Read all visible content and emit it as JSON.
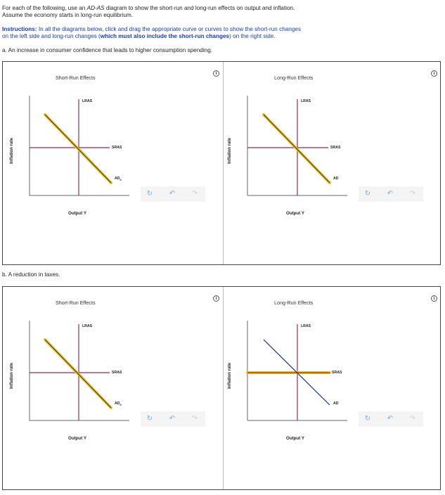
{
  "intro": {
    "line1_a": "For each of the following, use an ",
    "line1_em": "AD-AS",
    "line1_b": " diagram to show the short-run and long-run effects on output and inflation.",
    "line2": "Assume the economy starts in long-run equilibrium."
  },
  "instructions": {
    "label": "Instructions:",
    "line1": " In all the diagrams below, click and drag the appropriate curve or curves to show the short-run changes",
    "line2_a": "on the left side and long-run changes (",
    "line2_bold": "which must also include the short-run changes",
    "line2_b": ") on the right side."
  },
  "question_a": "a. An increase in consumer confidence that leads to higher consumption spending.",
  "question_b": "b. A reduction in taxes.",
  "panels": {
    "a": {
      "left": {
        "title": "Short-Run Effects",
        "ylabel": "Inflation rate",
        "xlabel": "Output Y",
        "lras": "LRAS",
        "sras": "SRAS",
        "ad": "AD",
        "ad_sub": "0"
      },
      "right": {
        "title": "Long-Run Effects",
        "ylabel": "Inflation rate",
        "xlabel": "Output Y",
        "lras": "LRAS",
        "sras": "SRAS",
        "ad": "AD",
        "ad_sub": ""
      }
    },
    "b": {
      "left": {
        "title": "Short-Run Effects",
        "ylabel": "Inflation rate",
        "xlabel": "Output Y",
        "lras": "LRAS",
        "sras": "SRAS",
        "ad": "AD",
        "ad_sub": "0"
      },
      "right": {
        "title": "Long-Run Effects",
        "ylabel": "Inflation rate",
        "xlabel": "Output Y",
        "lras": "LRAS",
        "sras": "SRAS",
        "ad": "AD",
        "ad_sub": ""
      }
    }
  },
  "icons": {
    "info": "i",
    "reset": "reset-icon",
    "undo": "undo-icon",
    "redo": "redo-icon"
  },
  "colors": {
    "lras": "#a0284a",
    "sras": "#a0284a",
    "ad": "#1a2a8a",
    "highlight": "#f2c200",
    "axis": "#666666",
    "text_blue": "#1a3ab8"
  }
}
